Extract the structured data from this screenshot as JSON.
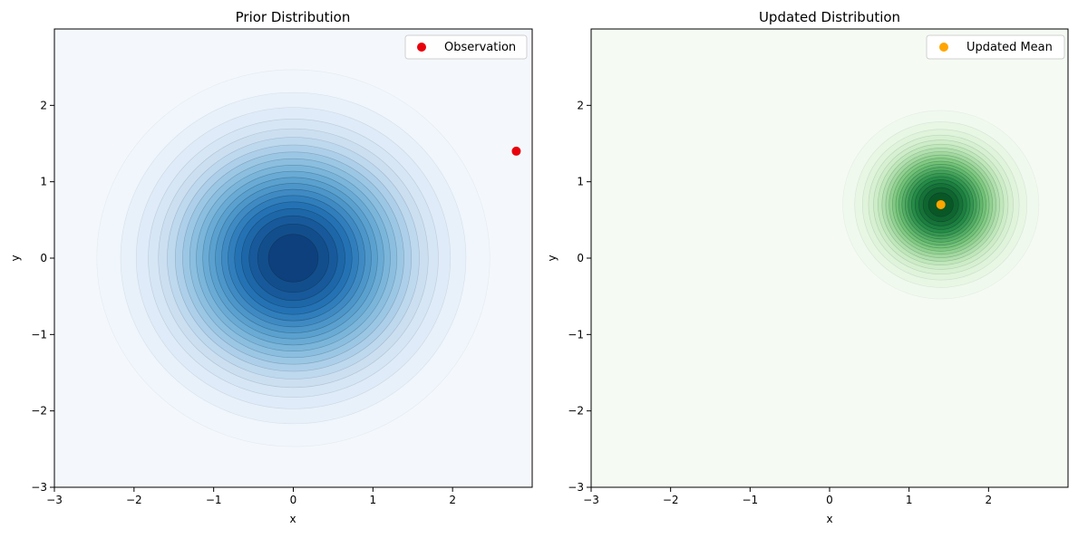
{
  "chart_data": [
    {
      "type": "contour",
      "title": "Prior Distribution",
      "xlabel": "x",
      "ylabel": "y",
      "xlim": [
        -3,
        3
      ],
      "ylim": [
        -3,
        3
      ],
      "xticks": [
        -3,
        -2,
        -1,
        0,
        1,
        2
      ],
      "yticks": [
        -3,
        -2,
        -1,
        0,
        1,
        2
      ],
      "xtick_labels": [
        "−3",
        "−2",
        "−1",
        "0",
        "1",
        "2"
      ],
      "ytick_labels": [
        "−3",
        "−2",
        "−1",
        "0",
        "1",
        "2"
      ],
      "colormap": "Blues",
      "background_color": "#f4f8fc",
      "distribution": {
        "mean": [
          0,
          0
        ],
        "sigma": 1.0
      },
      "levels": 20,
      "point": {
        "label": "Observation",
        "x": 2.8,
        "y": 1.4,
        "color": "#e8000b"
      },
      "legend_position": "top-right"
    },
    {
      "type": "contour",
      "title": "Updated Distribution",
      "xlabel": "x",
      "ylabel": "y",
      "xlim": [
        -3,
        3
      ],
      "ylim": [
        -3,
        3
      ],
      "xticks": [
        -3,
        -2,
        -1,
        0,
        1,
        2
      ],
      "yticks": [
        -3,
        -2,
        -1,
        0,
        1,
        2
      ],
      "xtick_labels": [
        "−3",
        "−2",
        "−1",
        "0",
        "1",
        "2"
      ],
      "ytick_labels": [
        "−3",
        "−2",
        "−1",
        "0",
        "1",
        "2"
      ],
      "colormap": "Greens",
      "background_color": "#f5fbf3",
      "distribution": {
        "mean": [
          1.4,
          0.7
        ],
        "sigma": 0.5
      },
      "levels": 20,
      "point": {
        "label": "Updated Mean",
        "x": 1.4,
        "y": 0.7,
        "color": "#ffa500"
      },
      "legend_position": "top-right"
    }
  ]
}
